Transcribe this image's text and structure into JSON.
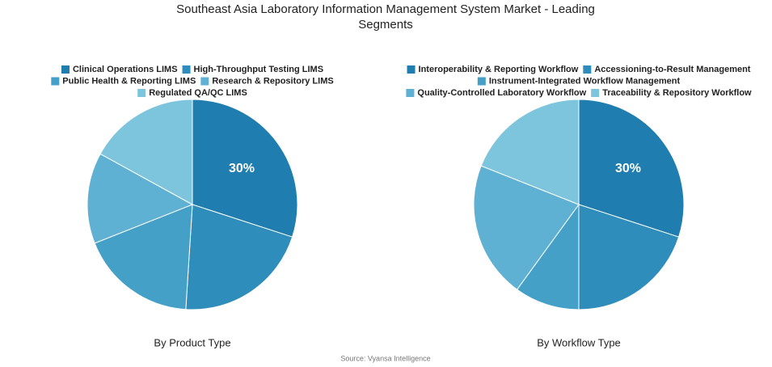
{
  "chart_data": [
    {
      "type": "pie",
      "subtitle": "By Product Type",
      "categories": [
        "Clinical Operations LIMS",
        "High-Throughput Testing LIMS",
        "Public Health & Reporting LIMS",
        "Research & Repository LIMS",
        "Regulated QA/QC LIMS"
      ],
      "values": [
        30,
        21,
        18,
        14,
        17
      ],
      "value_labels": [
        "30%",
        null,
        null,
        null,
        null
      ],
      "colors": [
        "#1f7eaf",
        "#2e8dbb",
        "#45a0c8",
        "#5eb1d3",
        "#7dc4dd"
      ]
    },
    {
      "type": "pie",
      "subtitle": "By Workflow Type",
      "categories": [
        "Interoperability & Reporting Workflow",
        "Accessioning-to-Result Management",
        "Instrument-Integrated Workflow Management",
        "Quality-Controlled Laboratory Workflow",
        "Traceability & Repository Workflow"
      ],
      "values": [
        30,
        20,
        10,
        21,
        19
      ],
      "value_labels": [
        "30%",
        null,
        null,
        null,
        null
      ],
      "colors": [
        "#1f7eaf",
        "#2e8dbb",
        "#45a0c8",
        "#5eb1d3",
        "#7dc4dd"
      ]
    }
  ],
  "title": "Southeast Asia Laboratory Information Management System Market - Leading Segments",
  "source": "Source: Vyansa Intelligence"
}
